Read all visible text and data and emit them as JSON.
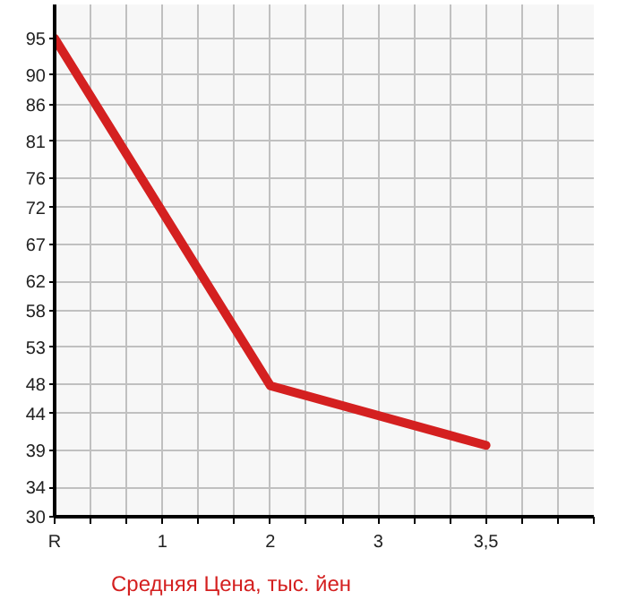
{
  "chart_data": {
    "type": "line",
    "categories": [
      "R",
      "1",
      "2",
      "3",
      "3,5"
    ],
    "ylim": [
      30,
      99.6
    ],
    "yticks": [
      30,
      34,
      39,
      44,
      48,
      53,
      58,
      62,
      67,
      72,
      76,
      81,
      86,
      90,
      95
    ],
    "series": [
      {
        "name": "Средняя Цена, тыс. йен",
        "color": "#d42020",
        "values": [
          95,
          null,
          47.8,
          null,
          39.7
        ]
      }
    ],
    "grid": true,
    "legend": "bottom",
    "line_style": "solid"
  }
}
